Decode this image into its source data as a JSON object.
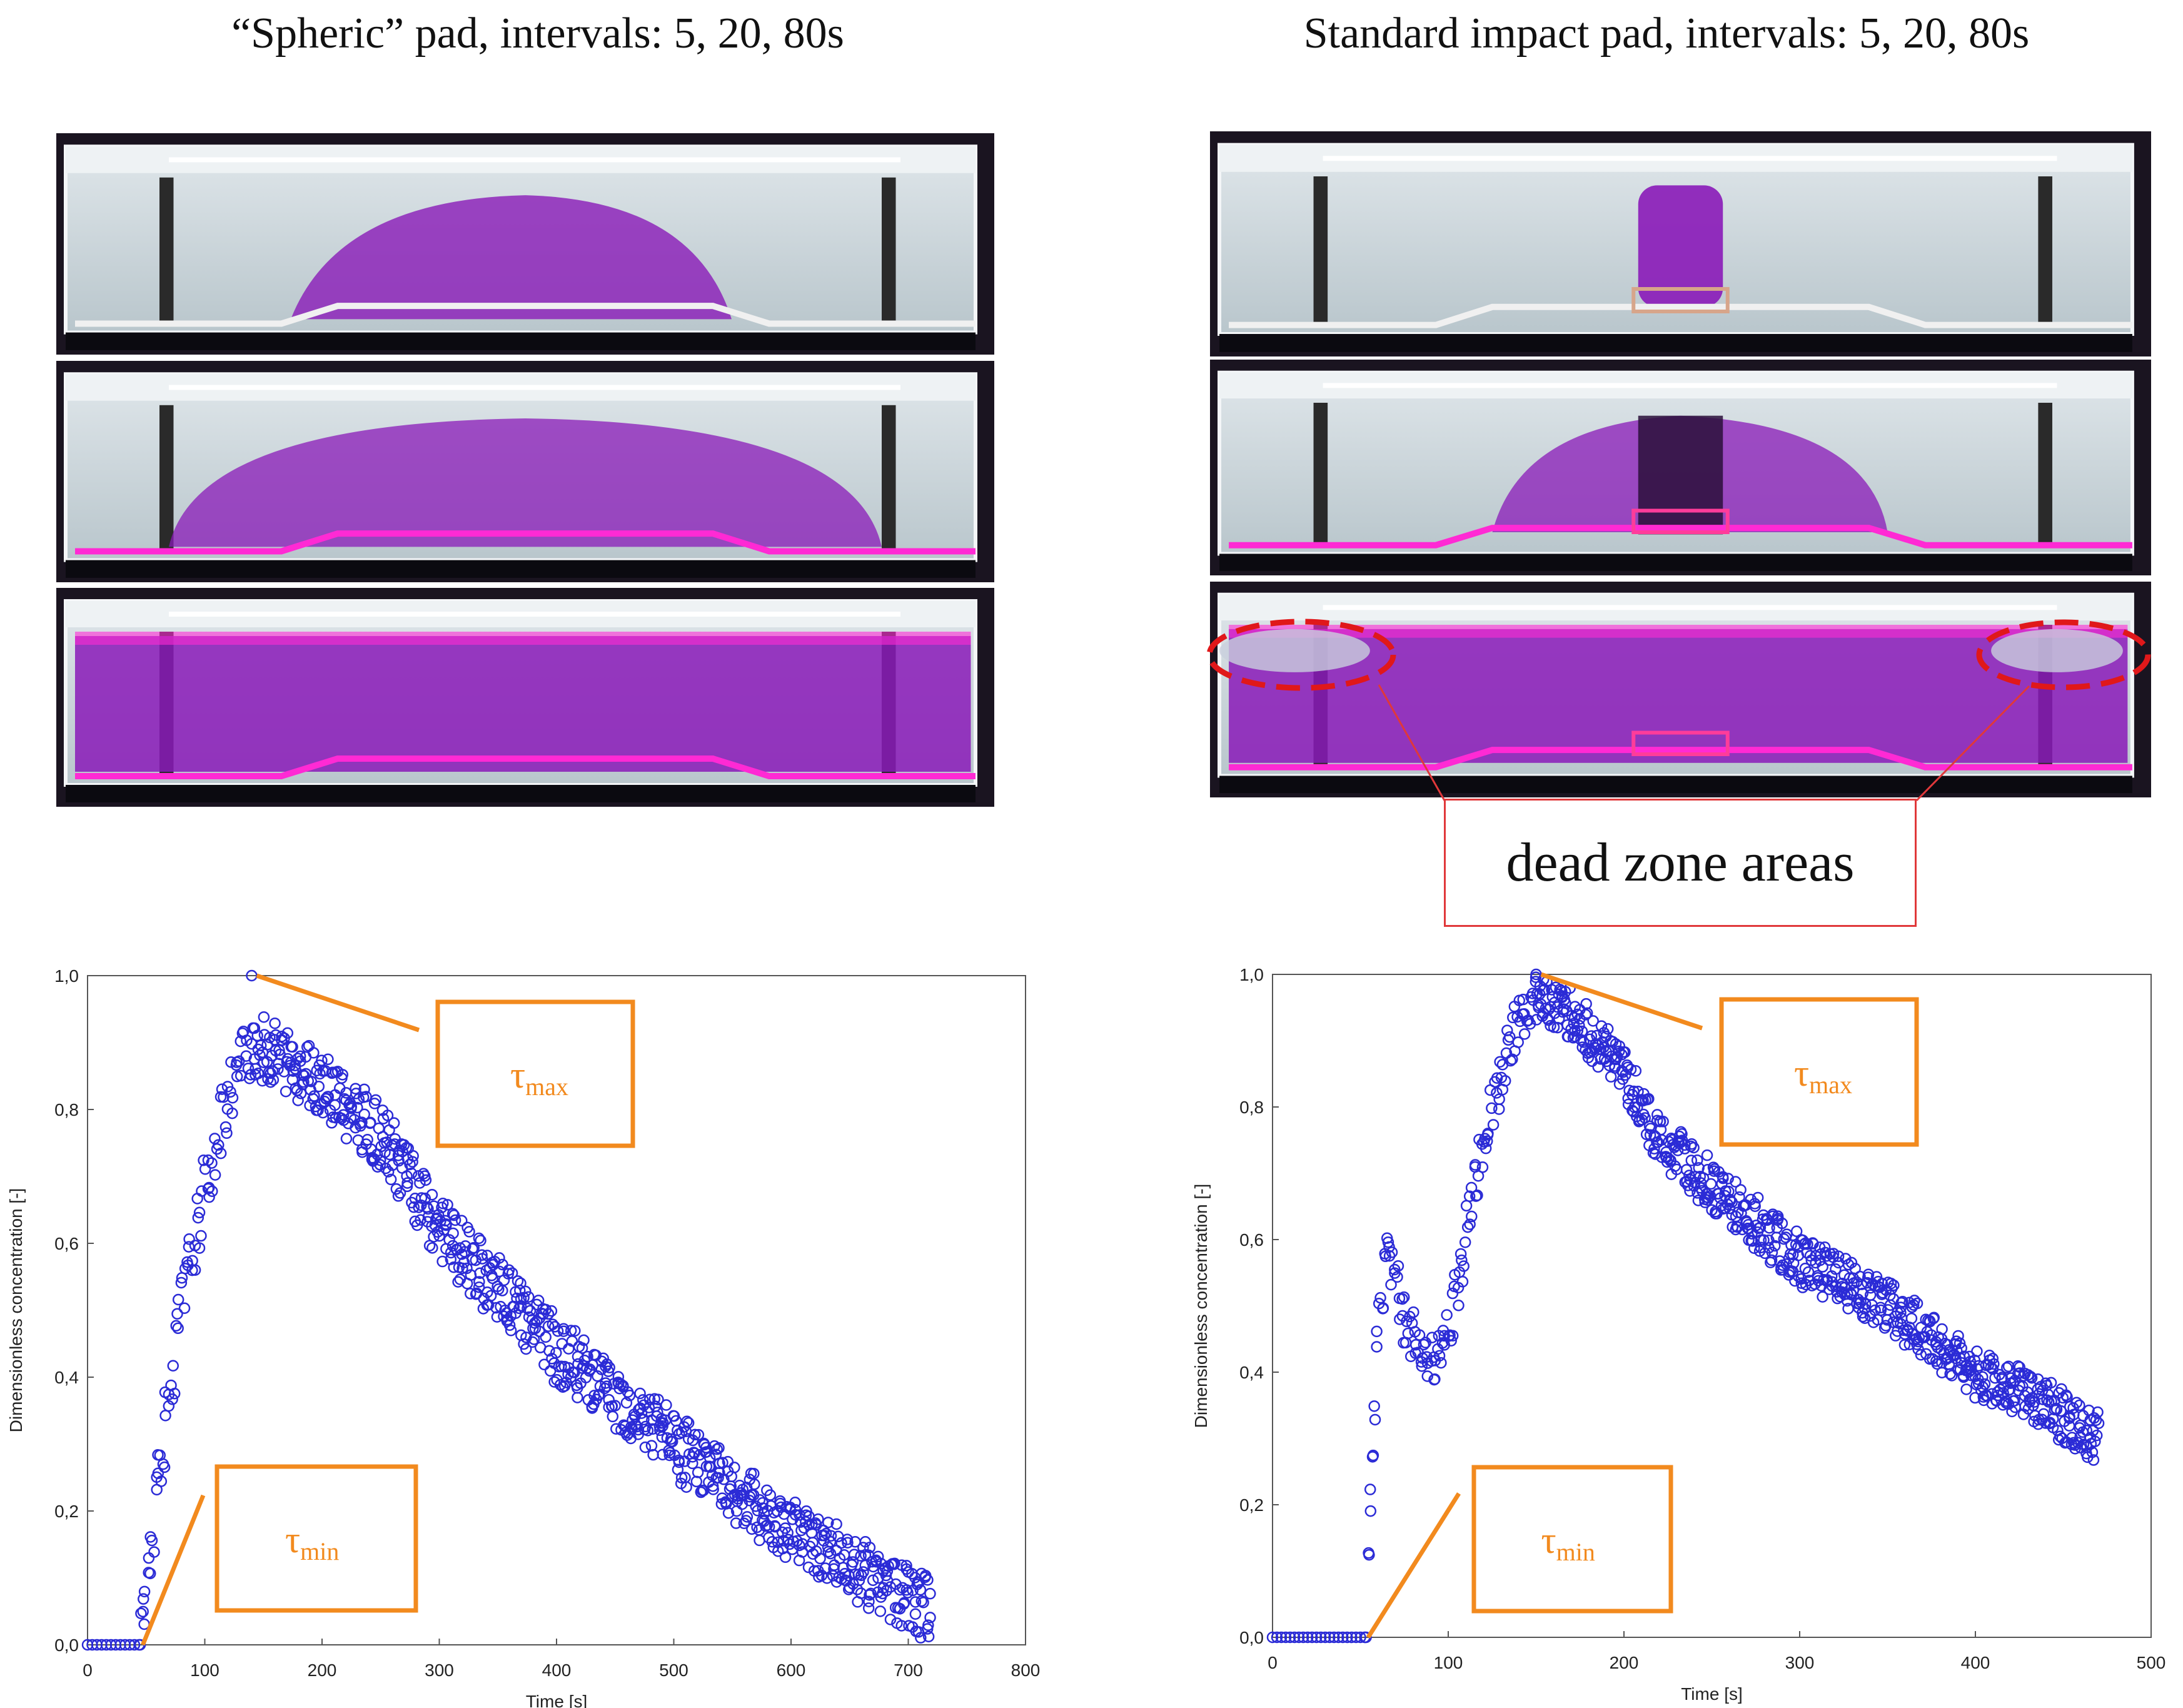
{
  "titles": {
    "left": "“Spheric” pad, intervals: 5, 20, 80s",
    "right": "Standard impact pad, intervals: 5, 20, 80s"
  },
  "photos": {
    "left": [
      {
        "name": "spheric-pad-5s",
        "dye": 0.35,
        "spread": "wide-plume"
      },
      {
        "name": "spheric-pad-20s",
        "dye": 0.6,
        "spread": "spreading"
      },
      {
        "name": "spheric-pad-80s",
        "dye": 1.0,
        "spread": "full"
      }
    ],
    "right": [
      {
        "name": "standard-pad-5s",
        "dye": 0.3,
        "spread": "column"
      },
      {
        "name": "standard-pad-20s",
        "dye": 0.55,
        "spread": "column-spread"
      },
      {
        "name": "standard-pad-80s",
        "dye": 0.9,
        "spread": "full-dead-zones"
      }
    ]
  },
  "callout": {
    "label": "dead zone areas",
    "color": "#e0383a"
  },
  "colors": {
    "points": "#2b2bd6",
    "annotation": "#f28a1e",
    "dye": "#8a1ab8",
    "pink": "#ff2ad4"
  },
  "chart_data": [
    {
      "type": "scatter",
      "name": "spheric-pad-rtd",
      "xlabel": "Time [s]",
      "ylabel": "Dimensionless concentration [-]",
      "xlim": [
        0,
        800
      ],
      "ylim": [
        0,
        1.0
      ],
      "xticks": [
        0,
        100,
        200,
        300,
        400,
        500,
        600,
        700,
        800
      ],
      "yticks": [
        "0,0",
        "0,2",
        "0,4",
        "0,6",
        "0,8",
        "1,0"
      ],
      "annotations": {
        "tau_max": {
          "symbol": "τ",
          "sub": "max",
          "point": [
            140,
            1.0
          ]
        },
        "tau_min": {
          "symbol": "τ",
          "sub": "min",
          "point": [
            45,
            0.0
          ]
        }
      },
      "curve": {
        "baseline": [
          0,
          45
        ],
        "rise": [
          [
            45,
            0.0
          ],
          [
            60,
            0.25
          ],
          [
            80,
            0.5
          ],
          [
            100,
            0.68
          ],
          [
            120,
            0.82
          ],
          [
            140,
            0.9
          ],
          [
            160,
            0.88
          ]
        ],
        "peak": [
          140,
          1.0
        ],
        "decay": [
          [
            160,
            0.88
          ],
          [
            200,
            0.84
          ],
          [
            250,
            0.76
          ],
          [
            300,
            0.62
          ],
          [
            400,
            0.44
          ],
          [
            500,
            0.3
          ],
          [
            600,
            0.17
          ],
          [
            700,
            0.07
          ],
          [
            720,
            0.05
          ]
        ],
        "spread": 0.05
      }
    },
    {
      "type": "scatter",
      "name": "standard-pad-rtd",
      "xlabel": "Time [s]",
      "ylabel": "Dimensionless concentration [-]",
      "xlim": [
        0,
        500
      ],
      "ylim": [
        0,
        1.0
      ],
      "xticks": [
        0,
        100,
        200,
        300,
        400,
        500
      ],
      "yticks": [
        "0,0",
        "0,2",
        "0,4",
        "0,6",
        "0,8",
        "1,0"
      ],
      "annotations": {
        "tau_max": {
          "symbol": "τ",
          "sub": "max",
          "point": [
            150,
            1.0
          ]
        },
        "tau_min": {
          "symbol": "τ",
          "sub": "min",
          "point": [
            53,
            0.0
          ]
        }
      },
      "curve": {
        "baseline": [
          0,
          53
        ],
        "rise": [
          [
            53,
            0.0
          ],
          [
            56,
            0.2
          ],
          [
            60,
            0.45
          ],
          [
            65,
            0.6
          ],
          [
            75,
            0.48
          ],
          [
            90,
            0.42
          ],
          [
            100,
            0.45
          ],
          [
            110,
            0.6
          ],
          [
            120,
            0.75
          ],
          [
            135,
            0.9
          ],
          [
            150,
            0.97
          ]
        ],
        "peak": [
          150,
          1.0
        ],
        "decay": [
          [
            170,
            0.94
          ],
          [
            200,
            0.85
          ],
          [
            220,
            0.75
          ],
          [
            250,
            0.68
          ],
          [
            300,
            0.57
          ],
          [
            350,
            0.5
          ],
          [
            400,
            0.4
          ],
          [
            440,
            0.35
          ],
          [
            470,
            0.3
          ]
        ],
        "spread": 0.04
      }
    }
  ]
}
